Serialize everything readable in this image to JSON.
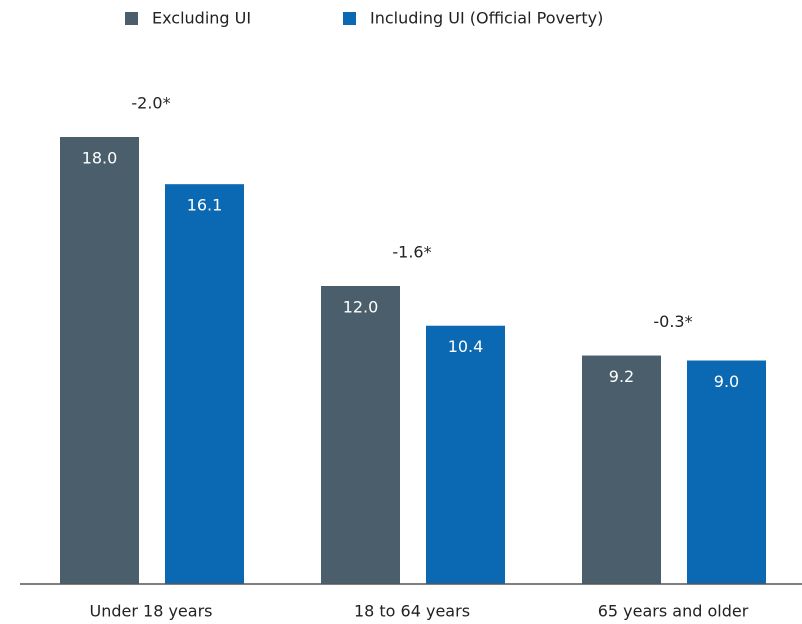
{
  "chart_data": {
    "type": "bar",
    "categories": [
      "Under 18 years",
      "18 to 64 years",
      "65 years and older"
    ],
    "series": [
      {
        "name": "Excluding UI",
        "color": "#4a5f6b",
        "values": [
          18.0,
          12.0,
          9.2
        ],
        "value_labels": [
          "18.0",
          "12.0",
          "9.2"
        ]
      },
      {
        "name": "Including UI (Official Poverty)",
        "color": "#0b69b3",
        "values": [
          16.1,
          10.4,
          9.0
        ],
        "value_labels": [
          "16.1",
          "10.4",
          "9.0"
        ]
      }
    ],
    "annotations": [
      "-2.0*",
      "-1.6*",
      "-0.3*"
    ]
  }
}
